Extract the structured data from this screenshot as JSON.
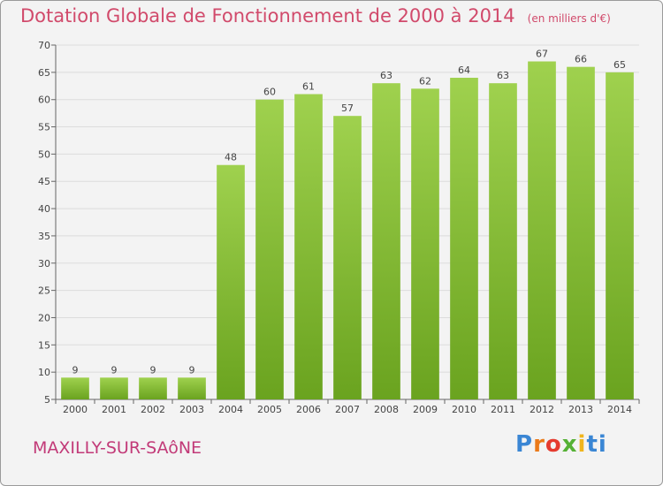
{
  "header": {
    "title": "Dotation Globale de Fonctionnement de 2000 à 2014",
    "unit": "(en milliers d'€)"
  },
  "footer": {
    "commune": "MAXILLY-SUR-SAôNE",
    "brand_letters": [
      "P",
      "r",
      "o",
      "x",
      "i",
      "ti"
    ]
  },
  "colors": {
    "bar_top": "#9fd14e",
    "bar_bottom": "#6aa31f",
    "title": "#d14a6b",
    "grid": "#dcdcdc"
  },
  "chart_data": {
    "type": "bar",
    "title": "Dotation Globale de Fonctionnement de 2000 à 2014",
    "subtitle": "(en milliers d'€)",
    "categories": [
      "2000",
      "2001",
      "2002",
      "2003",
      "2004",
      "2005",
      "2006",
      "2007",
      "2008",
      "2009",
      "2010",
      "2011",
      "2012",
      "2013",
      "2014"
    ],
    "values": [
      9,
      9,
      9,
      9,
      48,
      60,
      61,
      57,
      63,
      62,
      64,
      63,
      67,
      66,
      65
    ],
    "xlabel": "",
    "ylabel": "",
    "ylim": [
      5,
      70
    ],
    "yticks": [
      5,
      10,
      15,
      20,
      25,
      30,
      35,
      40,
      45,
      50,
      55,
      60,
      65,
      70
    ],
    "grid": true,
    "data_labels": true
  }
}
